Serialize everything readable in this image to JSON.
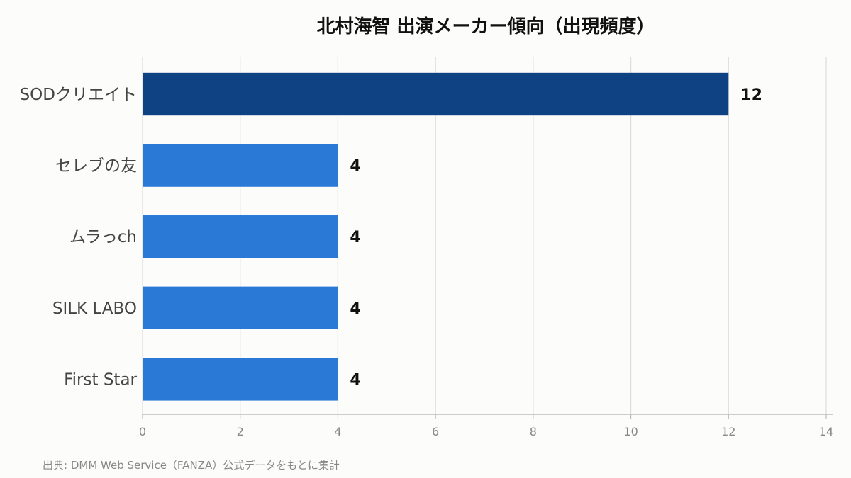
{
  "chart_data": {
    "type": "bar",
    "orientation": "horizontal",
    "title": "北村海智 出演メーカー傾向（出現頻度）",
    "categories": [
      "SODクリエイト",
      "セレブの友",
      "ムラっch",
      "SILK LABO",
      "First Star"
    ],
    "values": [
      12,
      4,
      4,
      4,
      4
    ],
    "xlim": [
      0,
      14
    ],
    "xticks": [
      0,
      2,
      4,
      6,
      8,
      10,
      12,
      14
    ],
    "grid": true,
    "colors": [
      "#0f4283",
      "#2b79d6",
      "#2b79d6",
      "#2b79d6",
      "#2b79d6"
    ]
  },
  "source_note": "出典: DMM Web Service（FANZA）公式データをもとに集計"
}
